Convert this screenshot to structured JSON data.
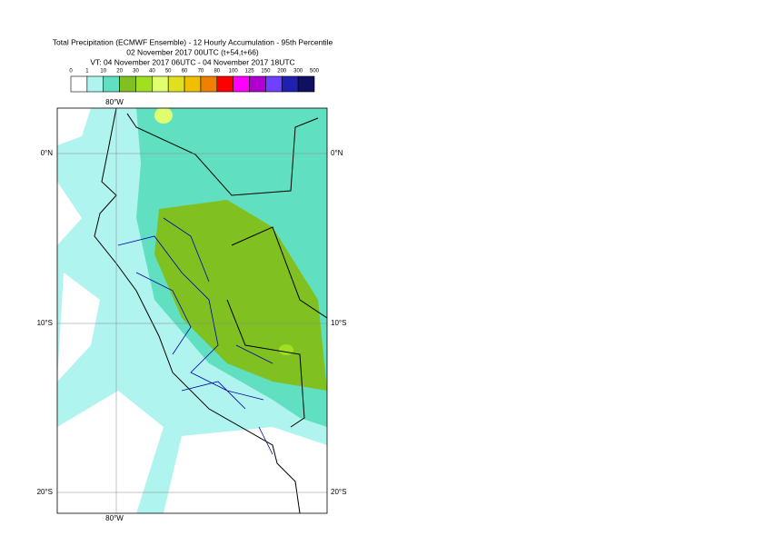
{
  "header": {
    "title": "Total Precipitation (ECMWF Ensemble) - 12 Hourly Accumulation - 95th Percentile",
    "run": "02 November 2017 00UTC (t+54,t+66)",
    "valid": "VT: 04 November 2017 06UTC - 04 November 2017 18UTC"
  },
  "legend": {
    "levels": [
      "0",
      "1",
      "10",
      "20",
      "30",
      "40",
      "50",
      "60",
      "70",
      "80",
      "100",
      "125",
      "150",
      "200",
      "300",
      "500"
    ],
    "colors": [
      "#ffffff",
      "#b0f4f0",
      "#60e0c0",
      "#80c020",
      "#a0e020",
      "#e0ff70",
      "#e0e020",
      "#f0c000",
      "#f08000",
      "#ff0000",
      "#ff00ff",
      "#b000d0",
      "#7040ff",
      "#2020b0",
      "#101060"
    ]
  },
  "axes": {
    "top": "80°W",
    "bottom": "80°W",
    "left": [
      "0°N",
      "10°S",
      "20°S"
    ],
    "right": [
      "0°N",
      "10°S",
      "20°S"
    ]
  }
}
